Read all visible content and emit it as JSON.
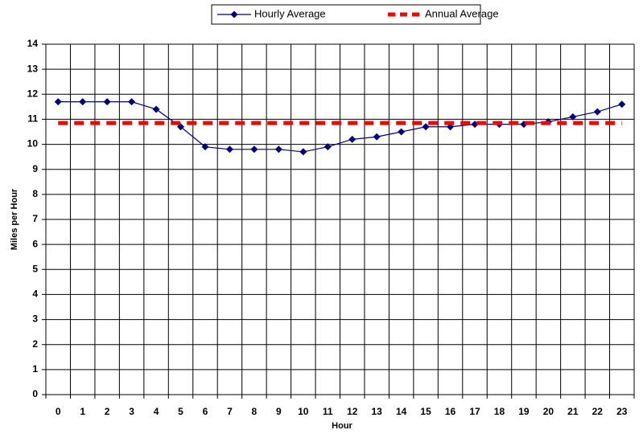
{
  "chart_data": {
    "type": "line",
    "x_label": "Hour",
    "y_label": "Miles per Hour",
    "categories": [
      "0",
      "1",
      "2",
      "3",
      "4",
      "5",
      "6",
      "7",
      "8",
      "9",
      "10",
      "11",
      "12",
      "13",
      "14",
      "15",
      "16",
      "17",
      "18",
      "19",
      "20",
      "21",
      "22",
      "23"
    ],
    "series": [
      {
        "name": "Hourly Average",
        "color": "#000080",
        "style": "solid-diamond",
        "values": [
          11.7,
          11.7,
          11.7,
          11.7,
          11.4,
          10.7,
          9.9,
          9.8,
          9.8,
          9.8,
          9.7,
          9.9,
          10.2,
          10.3,
          10.5,
          10.7,
          10.7,
          10.8,
          10.8,
          10.8,
          10.9,
          11.1,
          11.3,
          11.6
        ]
      },
      {
        "name": "Annual Average",
        "color": "#ff0000",
        "style": "dashed",
        "values": [
          10.85,
          10.85,
          10.85,
          10.85,
          10.85,
          10.85,
          10.85,
          10.85,
          10.85,
          10.85,
          10.85,
          10.85,
          10.85,
          10.85,
          10.85,
          10.85,
          10.85,
          10.85,
          10.85,
          10.85,
          10.85,
          10.85,
          10.85,
          10.85
        ]
      }
    ],
    "ylim": [
      0,
      14
    ],
    "yticks": [
      0,
      1,
      2,
      3,
      4,
      5,
      6,
      7,
      8,
      9,
      10,
      11,
      12,
      13,
      14
    ],
    "grid": true,
    "legend": "top"
  }
}
